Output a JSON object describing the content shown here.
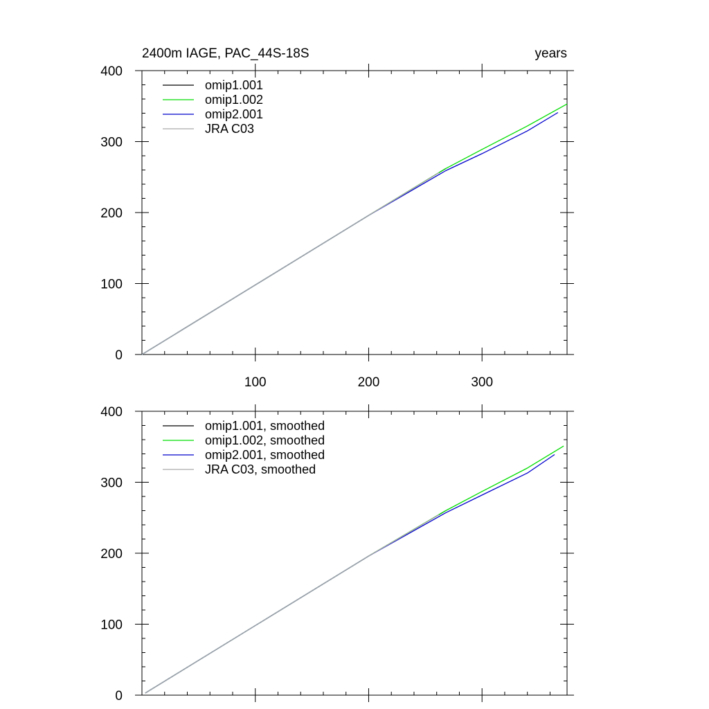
{
  "chart_data": [
    {
      "type": "line",
      "title": "2400m IAGE, PAC_44S-18S",
      "units": "years",
      "xlim": [
        0,
        375
      ],
      "ylim": [
        0,
        400
      ],
      "x_ticks": [
        100,
        200,
        300
      ],
      "y_ticks": [
        0,
        100,
        200,
        300,
        400
      ],
      "x_minor_step": 20,
      "y_minor_step": 20,
      "legend_position": "top-left",
      "series": [
        {
          "name": "omip1.001",
          "color": "#000000",
          "x": [
            0,
            100,
            200,
            268
          ],
          "y": [
            0,
            98,
            196,
            262
          ]
        },
        {
          "name": "omip1.002",
          "color": "#00dd00",
          "x": [
            0,
            100,
            200,
            268,
            300,
            340,
            375
          ],
          "y": [
            0,
            98,
            196,
            262,
            289,
            322,
            353
          ]
        },
        {
          "name": "omip2.001",
          "color": "#0000cc",
          "x": [
            0,
            100,
            200,
            268,
            300,
            340,
            367
          ],
          "y": [
            0,
            98,
            196,
            259,
            283,
            315,
            341
          ]
        },
        {
          "name": "JRA C03",
          "color": "#aaaaaa",
          "x": [
            0,
            100,
            200,
            262
          ],
          "y": [
            0,
            98,
            196,
            256
          ]
        }
      ]
    },
    {
      "type": "line",
      "title": "",
      "xlim": [
        0,
        375
      ],
      "ylim": [
        0,
        400
      ],
      "x_ticks": [
        100,
        200,
        300
      ],
      "y_ticks": [
        0,
        100,
        200,
        300,
        400
      ],
      "x_minor_step": 20,
      "y_minor_step": 20,
      "legend_position": "top-left",
      "series": [
        {
          "name": "omip1.001, smoothed",
          "color": "#000000",
          "x": [
            3,
            100,
            200,
            268
          ],
          "y": [
            3,
            98,
            196,
            260
          ]
        },
        {
          "name": "omip1.002, smoothed",
          "color": "#00dd00",
          "x": [
            3,
            100,
            200,
            268,
            300,
            340,
            372
          ],
          "y": [
            3,
            98,
            196,
            260,
            287,
            320,
            351
          ]
        },
        {
          "name": "omip2.001, smoothed",
          "color": "#0000cc",
          "x": [
            3,
            100,
            200,
            268,
            300,
            340,
            364
          ],
          "y": [
            3,
            98,
            196,
            257,
            282,
            313,
            339
          ]
        },
        {
          "name": "JRA C03, smoothed",
          "color": "#aaaaaa",
          "x": [
            3,
            100,
            200,
            262
          ],
          "y": [
            3,
            98,
            196,
            254
          ]
        }
      ]
    }
  ]
}
